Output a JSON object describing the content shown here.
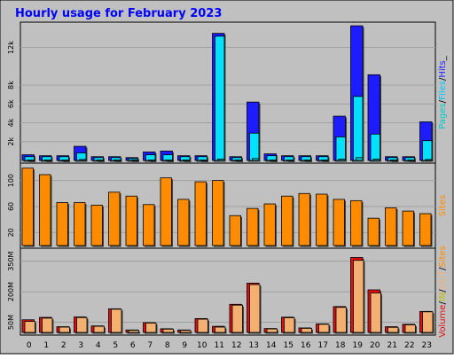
{
  "title": "Hourly usage for February 2023",
  "colors": {
    "frame": "#c0c0c0",
    "plot": "#c0c0c0",
    "title": "#0000ff",
    "grid": "#a0a0a0",
    "pages": "#1c1cff",
    "files": "#00e0ff",
    "hits": "#1c1cff",
    "sites": "#ff8c00",
    "volume": "#e01010",
    "in": "#c0c000",
    "out": "#f4b070",
    "tick_text": "#000000"
  },
  "chart_data": [
    {
      "type": "bar",
      "panel": "hits-files-pages",
      "categories": [
        "0",
        "1",
        "2",
        "3",
        "4",
        "5",
        "6",
        "7",
        "8",
        "9",
        "10",
        "11",
        "12",
        "13",
        "14",
        "15",
        "16",
        "17",
        "18",
        "19",
        "20",
        "21",
        "22",
        "23"
      ],
      "ylim": [
        0,
        14500
      ],
      "yticks": [
        2000,
        4000,
        6000,
        8000,
        12000
      ],
      "ytick_labels": [
        "2k",
        "4k",
        "6k",
        "8k",
        "12k"
      ],
      "legend": [
        {
          "text": "Pages",
          "color": "#00c8c8"
        },
        {
          "text": "/",
          "color": "#000000"
        },
        {
          "text": "Files",
          "color": "#00c8ff"
        },
        {
          "text": "/",
          "color": "#000000"
        },
        {
          "text": "Hits",
          "color": "#1c1cff"
        },
        {
          "text": "_",
          "color": "#000000"
        }
      ],
      "series": [
        {
          "name": "Hits",
          "values": [
            600,
            500,
            500,
            1500,
            400,
            400,
            300,
            900,
            1000,
            500,
            500,
            13500,
            400,
            6200,
            700,
            500,
            500,
            500,
            4700,
            14300,
            9100,
            400,
            400,
            4100
          ]
        },
        {
          "name": "Files",
          "values": [
            400,
            400,
            400,
            800,
            300,
            300,
            200,
            600,
            600,
            400,
            400,
            13200,
            300,
            2900,
            500,
            400,
            400,
            400,
            2500,
            6800,
            2800,
            300,
            300,
            2100
          ]
        },
        {
          "name": "Pages",
          "values": [
            50,
            50,
            50,
            100,
            50,
            50,
            50,
            50,
            50,
            50,
            50,
            150,
            50,
            200,
            50,
            50,
            50,
            50,
            150,
            300,
            150,
            50,
            50,
            100
          ]
        }
      ]
    },
    {
      "type": "bar",
      "panel": "sites",
      "categories": [
        "0",
        "1",
        "2",
        "3",
        "4",
        "5",
        "6",
        "7",
        "8",
        "9",
        "10",
        "11",
        "12",
        "13",
        "14",
        "15",
        "16",
        "17",
        "18",
        "19",
        "20",
        "21",
        "22",
        "23"
      ],
      "ylim": [
        0,
        124
      ],
      "yticks": [
        20,
        60,
        100
      ],
      "ytick_labels": [
        "20",
        "60",
        "100"
      ],
      "legend": [
        {
          "text": "Sites",
          "color": "#ff8c00"
        }
      ],
      "series": [
        {
          "name": "Sites",
          "values": [
            119,
            109,
            66,
            66,
            62,
            82,
            76,
            63,
            104,
            71,
            98,
            100,
            46,
            57,
            64,
            76,
            80,
            79,
            71,
            69,
            42,
            58,
            53,
            49
          ]
        }
      ]
    },
    {
      "type": "bar",
      "panel": "volume",
      "categories": [
        "0",
        "1",
        "2",
        "3",
        "4",
        "5",
        "6",
        "7",
        "8",
        "9",
        "10",
        "11",
        "12",
        "13",
        "14",
        "15",
        "16",
        "17",
        "18",
        "19",
        "20",
        "21",
        "22",
        "23"
      ],
      "ylim": [
        0,
        405
      ],
      "yticks": [
        50,
        200,
        350
      ],
      "ytick_labels": [
        "50M",
        "200M",
        "350M"
      ],
      "legend": [
        {
          "text": "Volume",
          "color": "#e01010"
        },
        {
          "text": "/",
          "color": "#000000"
        },
        {
          "text": "IN",
          "color": "#c0c000"
        },
        {
          "text": "/",
          "color": "#000000"
        },
        {
          "text": "OUT",
          "color": "#f4b070"
        },
        {
          "text": "/",
          "color": "#000000"
        },
        {
          "text": "Sites",
          "color": "#ff8c00"
        }
      ],
      "series": [
        {
          "name": "Volume",
          "values": [
            62,
            74,
            28,
            76,
            32,
            116,
            12,
            48,
            18,
            12,
            68,
            30,
            138,
            242,
            19,
            75,
            22,
            42,
            127,
            368,
            209,
            28,
            40,
            103
          ]
        },
        {
          "name": "OUT",
          "values": [
            54,
            70,
            26,
            73,
            30,
            114,
            10,
            46,
            16,
            10,
            65,
            26,
            134,
            235,
            17,
            72,
            20,
            40,
            123,
            354,
            194,
            25,
            37,
            101
          ]
        }
      ]
    }
  ]
}
